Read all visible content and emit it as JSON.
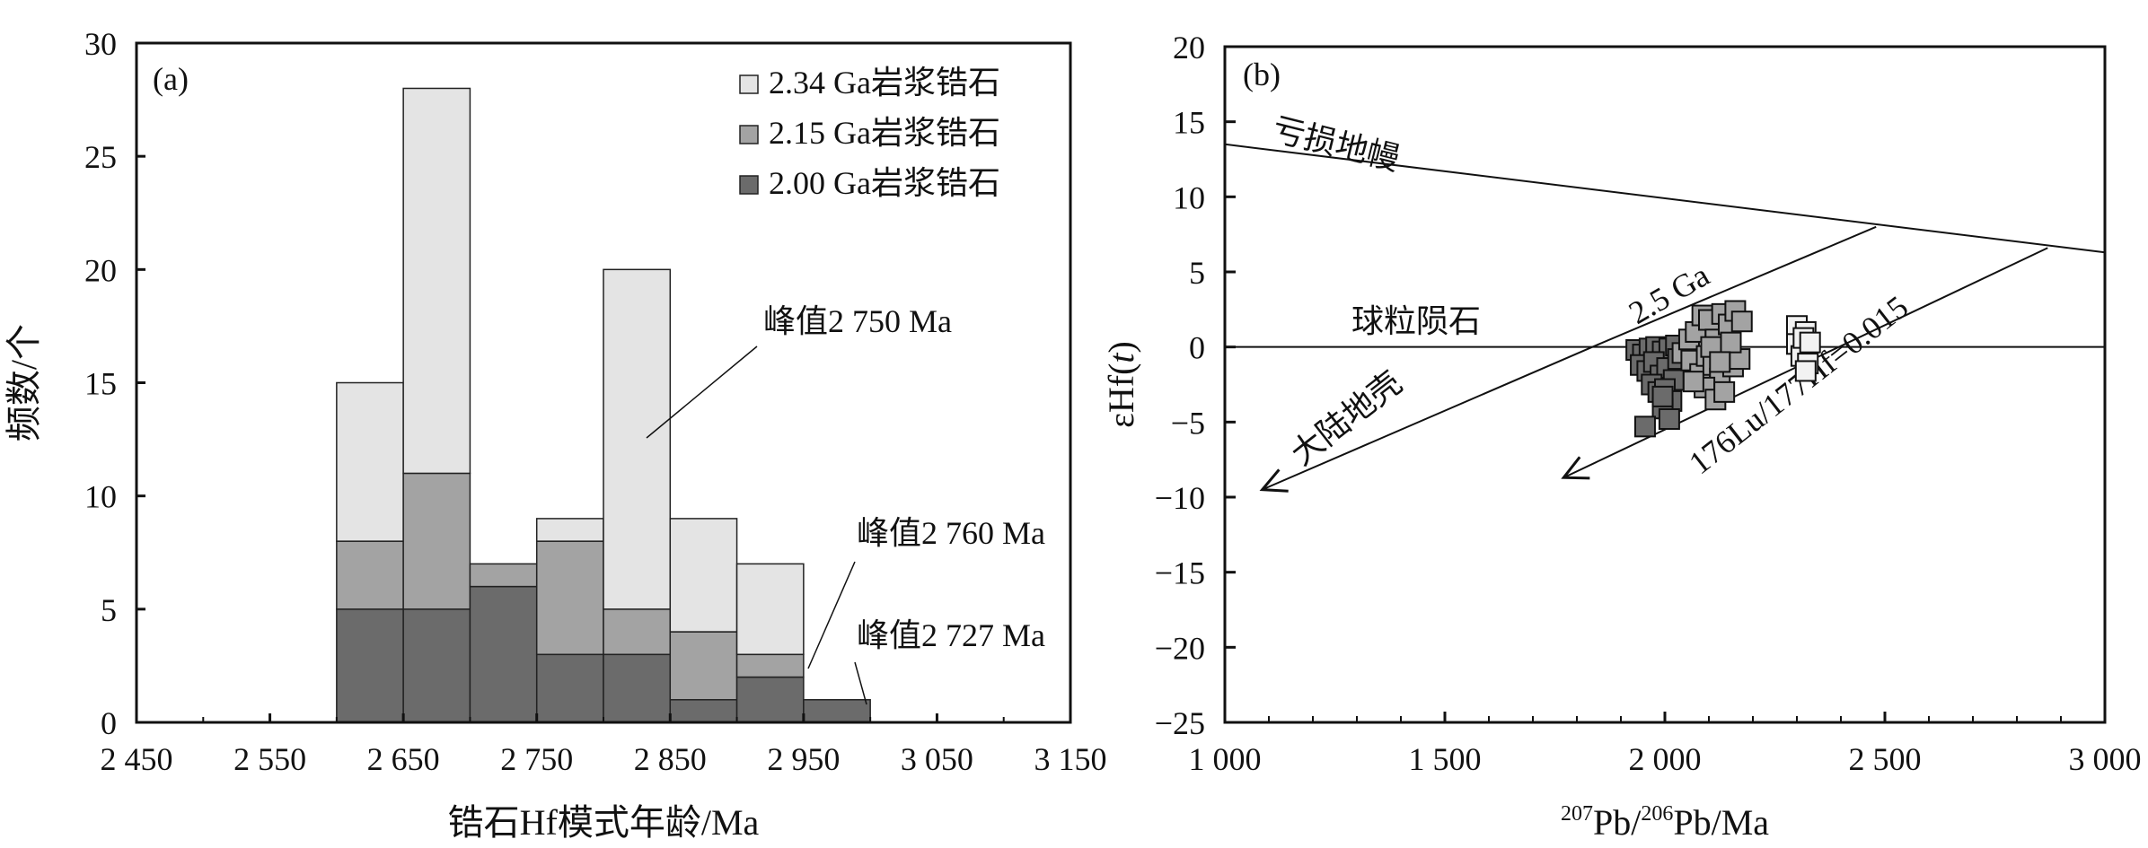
{
  "chart_data": [
    {
      "type": "bar",
      "stacked": true,
      "panel_label": "(a)",
      "xlabel": "锆石Hf模式年龄/Ma",
      "ylabel": "频数/个",
      "xlim": [
        2450,
        3150
      ],
      "ylim": [
        0,
        30
      ],
      "x_ticks": [
        2450,
        2550,
        2650,
        2750,
        2850,
        2950,
        3050,
        3150
      ],
      "x_tick_labels": [
        "2 450",
        "2 550",
        "2 650",
        "2 750",
        "2 850",
        "2 950",
        "3 050",
        "3 150"
      ],
      "y_ticks": [
        0,
        5,
        10,
        15,
        20,
        25,
        30
      ],
      "y_tick_labels": [
        "0",
        "5",
        "10",
        "15",
        "20",
        "25",
        "30"
      ],
      "bin_edges": [
        2600,
        2650,
        2700,
        2750,
        2800,
        2850,
        2900,
        2950,
        3000
      ],
      "series": [
        {
          "name": "2.00 Ga岩浆锆石",
          "color": "#6b6b6b",
          "values": [
            5,
            5,
            6,
            3,
            3,
            1,
            2,
            1
          ]
        },
        {
          "name": "2.15 Ga岩浆锆石",
          "color": "#a3a3a3",
          "values": [
            3,
            6,
            1,
            5,
            2,
            3,
            1,
            0
          ]
        },
        {
          "name": "2.34 Ga岩浆锆石",
          "color": "#e4e4e4",
          "values": [
            7,
            17,
            0,
            1,
            15,
            5,
            4,
            0
          ]
        }
      ],
      "legend_order": [
        2,
        1,
        0
      ],
      "legend_position": "top-right",
      "annotations": [
        {
          "text": "峰值2 750 Ma",
          "x": 2812,
          "y": 12.5
        },
        {
          "text": "峰值2 760 Ma",
          "x": 2925,
          "y": 2.2
        },
        {
          "text": "峰值2 727 Ma",
          "x": 2975,
          "y": 0.6
        }
      ]
    },
    {
      "type": "scatter",
      "panel_label": "(b)",
      "xlabel_sup1": "207",
      "xlabel_mid": "Pb/",
      "xlabel_sup2": "206",
      "xlabel_end": "Pb/Ma",
      "ylabel_prefix": "εHf(",
      "ylabel_italic": "t",
      "ylabel_suffix": ")",
      "xlim": [
        1000,
        3000
      ],
      "ylim": [
        -25,
        20
      ],
      "x_ticks": [
        1000,
        1500,
        2000,
        2500,
        3000
      ],
      "x_tick_labels": [
        "1 000",
        "1 500",
        "2 000",
        "2 500",
        "3 000"
      ],
      "y_ticks": [
        -25,
        -20,
        -15,
        -10,
        -5,
        0,
        5,
        10,
        15,
        20
      ],
      "y_tick_labels": [
        "−25",
        "−20",
        "−15",
        "−10",
        "−5",
        "0",
        "5",
        "10",
        "15",
        "20"
      ],
      "lines": [
        {
          "label": "亏损地幔",
          "points": [
            [
              1000,
              13.5
            ],
            [
              3000,
              6.3
            ]
          ]
        },
        {
          "label": "球粒陨石",
          "points": [
            [
              1000,
              0
            ],
            [
              3000,
              0
            ]
          ]
        },
        {
          "label": "2.5 Ga",
          "points": [
            [
              1835,
              0
            ],
            [
              2480,
              8.0
            ]
          ]
        },
        {
          "label": "大陆地壳",
          "points": [
            [
              1835,
              0
            ],
            [
              1085,
              -9.5
            ]
          ]
        },
        {
          "label": "176Lu/177Hf=0.015",
          "points": [
            [
              2870,
              6.6
            ],
            [
              1770,
              -8.7
            ]
          ]
        }
      ],
      "series": [
        {
          "name": "2.00 Ga岩浆锆石",
          "color": "#6b6b6b",
          "points": [
            [
              1935,
              -0.2
            ],
            [
              1950,
              -0.5
            ],
            [
              1965,
              -0.1
            ],
            [
              1980,
              0.0
            ],
            [
              1995,
              -0.3
            ],
            [
              2010,
              -0.1
            ],
            [
              2025,
              0.1
            ],
            [
              1945,
              -1.2
            ],
            [
              1960,
              -1.6
            ],
            [
              1975,
              -1.0
            ],
            [
              1990,
              -1.9
            ],
            [
              2005,
              -1.4
            ],
            [
              2020,
              -2.2
            ],
            [
              1970,
              -2.5
            ],
            [
              1985,
              -3.0
            ],
            [
              2000,
              -2.8
            ],
            [
              2015,
              -3.6
            ],
            [
              1995,
              -4.1
            ],
            [
              2010,
              -4.8
            ],
            [
              1995,
              -3.3
            ],
            [
              2030,
              -0.8
            ],
            [
              1955,
              -5.3
            ]
          ]
        },
        {
          "name": "2.15 Ga岩浆锆石",
          "color": "#a3a3a3",
          "points": [
            [
              2040,
              -0.4
            ],
            [
              2055,
              0.5
            ],
            [
              2070,
              1.0
            ],
            [
              2085,
              2.1
            ],
            [
              2100,
              1.8
            ],
            [
              2115,
              0.5
            ],
            [
              2130,
              2.2
            ],
            [
              2145,
              1.5
            ],
            [
              2160,
              2.4
            ],
            [
              2175,
              1.7
            ],
            [
              2060,
              -0.9
            ],
            [
              2080,
              -1.8
            ],
            [
              2095,
              -0.6
            ],
            [
              2110,
              -1.2
            ],
            [
              2125,
              -2.1
            ],
            [
              2140,
              -0.4
            ],
            [
              2155,
              -1.3
            ],
            [
              2170,
              -0.8
            ],
            [
              2090,
              -2.7
            ],
            [
              2115,
              -3.5
            ],
            [
              2135,
              -3.0
            ],
            [
              2105,
              0.0
            ],
            [
              2150,
              0.3
            ],
            [
              2065,
              -2.3
            ],
            [
              2125,
              -1.0
            ]
          ]
        },
        {
          "name": "2.34 Ga岩浆锆石",
          "color": "#f2f2f2",
          "points": [
            [
              2300,
              1.4
            ],
            [
              2300,
              0.2
            ],
            [
              2310,
              -0.6
            ],
            [
              2320,
              1.0
            ],
            [
              2325,
              -1.1
            ],
            [
              2315,
              0.6
            ],
            [
              2330,
              0.3
            ],
            [
              2320,
              -1.6
            ]
          ]
        }
      ]
    }
  ]
}
